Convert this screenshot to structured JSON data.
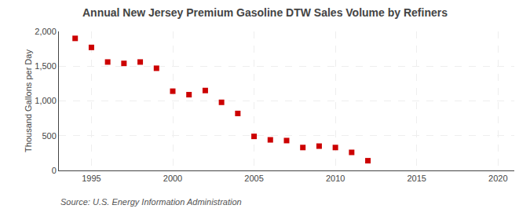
{
  "chart_data": {
    "type": "scatter",
    "title": "Annual New Jersey Premium Gasoline DTW Sales Volume by Refiners",
    "ylabel": "Thousand Gallons per Day",
    "annotations": [
      "Source: U.S. Energy Information Administration"
    ],
    "x": [
      1994,
      1995,
      1996,
      1997,
      1998,
      1999,
      2000,
      2001,
      2002,
      2003,
      2004,
      2005,
      2006,
      2007,
      2008,
      2009,
      2010,
      2011,
      2012
    ],
    "values": [
      1900,
      1770,
      1560,
      1540,
      1560,
      1470,
      1140,
      1090,
      1150,
      980,
      820,
      490,
      440,
      430,
      330,
      350,
      330,
      260,
      140
    ],
    "color": "#cc0000",
    "marker": "square",
    "xlim": [
      1993,
      2021
    ],
    "xticks": [
      1995,
      2000,
      2005,
      2010,
      2015,
      2020
    ],
    "ylim": [
      0,
      2000
    ],
    "yticks": [
      0,
      500,
      {
        "value": 1000,
        "label": "1,000"
      },
      {
        "value": 1500,
        "label": "1,500"
      },
      {
        "value": 2000,
        "label": "2,000"
      }
    ],
    "grid": true
  }
}
